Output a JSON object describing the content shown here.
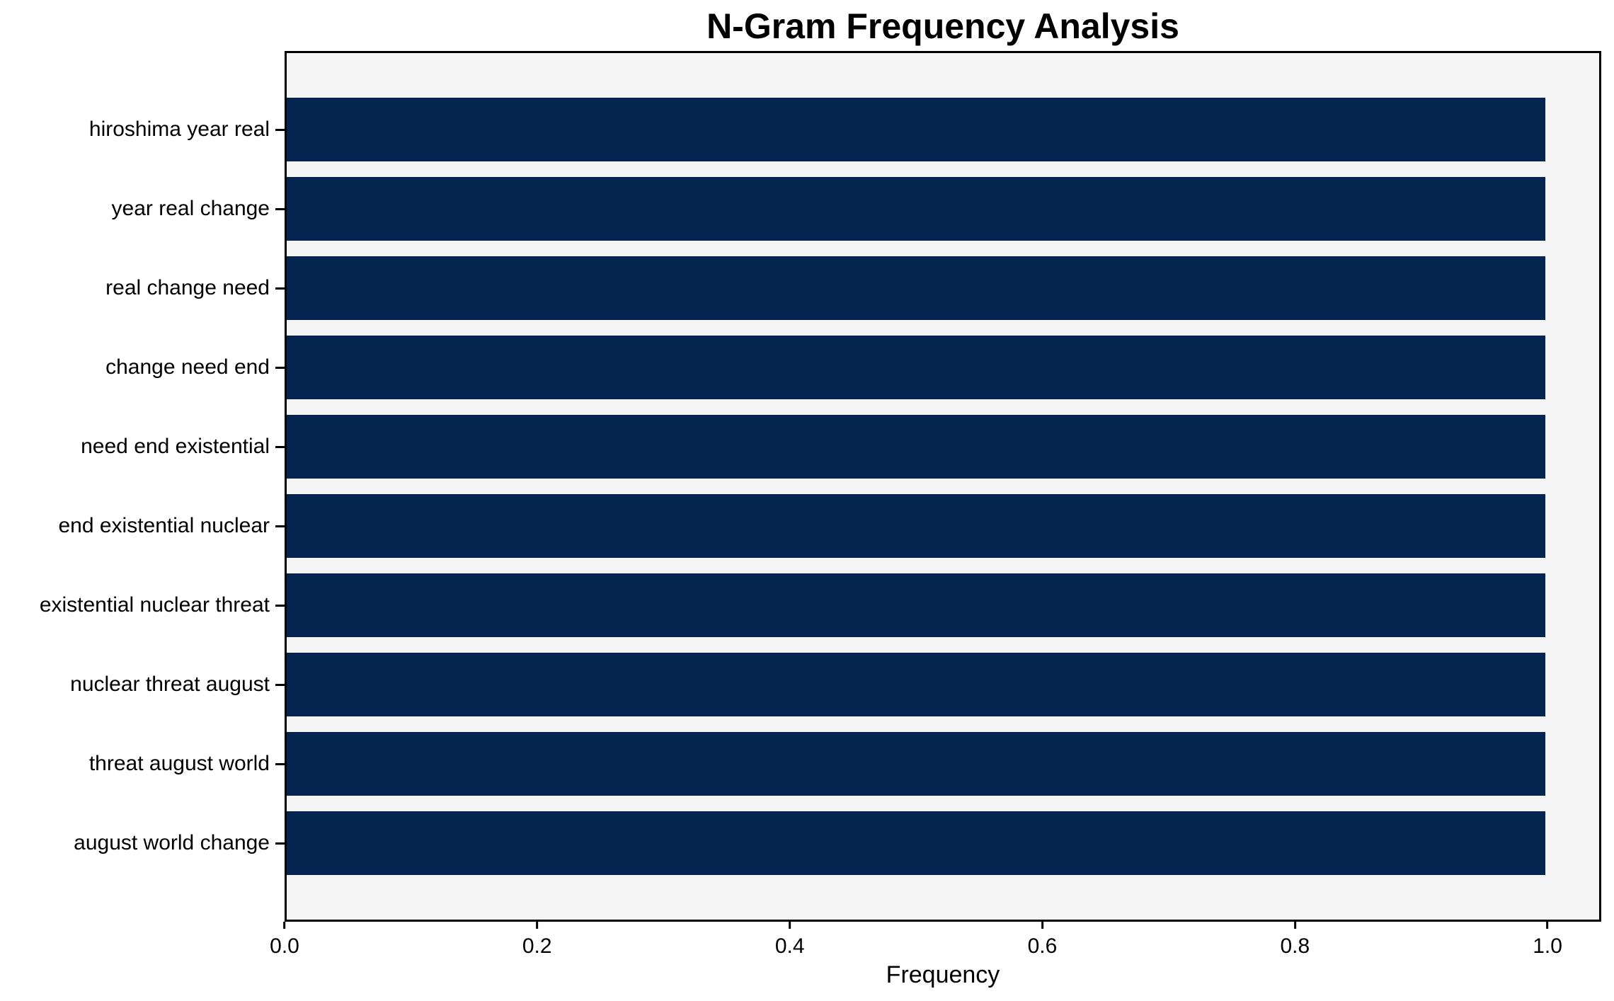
{
  "chart_data": {
    "type": "bar",
    "orientation": "horizontal",
    "title": "N-Gram Frequency Analysis",
    "xlabel": "Frequency",
    "ylabel": "",
    "categories": [
      "hiroshima year real",
      "year real change",
      "real change need",
      "change need end",
      "need end existential",
      "end existential nuclear",
      "existential nuclear threat",
      "nuclear threat august",
      "threat august world",
      "august world change"
    ],
    "values": [
      1.0,
      1.0,
      1.0,
      1.0,
      1.0,
      1.0,
      1.0,
      1.0,
      1.0,
      1.0
    ],
    "xticks": [
      0.0,
      0.2,
      0.4,
      0.6,
      0.8,
      1.0
    ],
    "xtick_labels": [
      "0.0",
      "0.2",
      "0.4",
      "0.6",
      "0.8",
      "1.0"
    ],
    "xlim": [
      0,
      1.0425
    ],
    "grid": false,
    "legend_position": "none",
    "colors": {
      "bar": "#04254f",
      "plot_background": "#f5f5f5",
      "figure_background": "#ffffff",
      "axis": "#000000",
      "text": "#000000"
    }
  }
}
